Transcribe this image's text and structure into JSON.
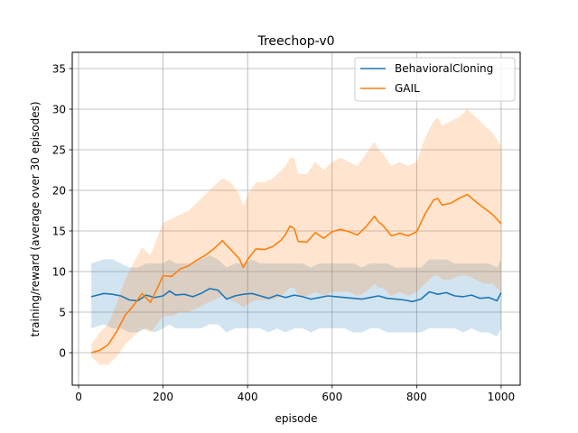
{
  "chart_data": {
    "type": "line",
    "title": "Treechop-v0",
    "xlabel": "episode",
    "ylabel": "training/reward (average over 30 episodes)",
    "xlim": [
      -15,
      1045
    ],
    "ylim": [
      -4,
      37
    ],
    "xticks": [
      0,
      200,
      400,
      600,
      800,
      1000
    ],
    "yticks": [
      0,
      5,
      10,
      15,
      20,
      25,
      30,
      35
    ],
    "xtick_labels": [
      "0",
      "200",
      "400",
      "600",
      "800",
      "1000"
    ],
    "ytick_labels": [
      "0",
      "5",
      "10",
      "15",
      "20",
      "25",
      "30",
      "35"
    ],
    "grid": true,
    "legend_position": "upper right",
    "series": [
      {
        "name": "BehavioralCloning",
        "color": "#1f77b4",
        "x": [
          30,
          60,
          80,
          100,
          120,
          140,
          160,
          180,
          200,
          215,
          230,
          250,
          270,
          290,
          310,
          330,
          350,
          370,
          390,
          410,
          430,
          450,
          470,
          490,
          510,
          530,
          550,
          570,
          590,
          610,
          630,
          650,
          670,
          690,
          710,
          730,
          750,
          770,
          790,
          810,
          830,
          850,
          870,
          890,
          910,
          930,
          950,
          970,
          990,
          1000
        ],
        "y": [
          6.9,
          7.3,
          7.2,
          7.0,
          6.5,
          6.4,
          7.1,
          6.8,
          7.0,
          7.6,
          7.1,
          7.2,
          6.9,
          7.3,
          7.9,
          7.7,
          6.6,
          7.0,
          7.2,
          7.3,
          7.0,
          6.7,
          7.1,
          6.8,
          7.1,
          6.9,
          6.6,
          6.8,
          7.0,
          6.9,
          6.8,
          6.7,
          6.6,
          6.8,
          7.0,
          6.7,
          6.6,
          6.5,
          6.3,
          6.6,
          7.5,
          7.2,
          7.4,
          7.0,
          6.9,
          7.1,
          6.7,
          6.8,
          6.4,
          7.4
        ],
        "band_low": [
          3.0,
          3.5,
          3.0,
          3.0,
          2.5,
          2.5,
          3.0,
          2.5,
          3.0,
          3.5,
          3.0,
          3.0,
          3.0,
          3.0,
          3.5,
          3.5,
          2.5,
          3.0,
          3.0,
          3.0,
          3.0,
          2.5,
          3.0,
          2.5,
          3.0,
          3.0,
          2.5,
          3.0,
          3.0,
          3.0,
          3.0,
          2.5,
          2.5,
          3.0,
          3.0,
          2.5,
          2.5,
          2.5,
          2.5,
          2.5,
          3.0,
          3.0,
          3.0,
          3.0,
          2.5,
          3.0,
          2.5,
          2.5,
          2.0,
          3.0
        ],
        "band_high": [
          11.0,
          11.5,
          11.5,
          11.0,
          10.5,
          10.5,
          11.0,
          11.0,
          11.0,
          11.5,
          11.0,
          11.0,
          11.0,
          11.5,
          12.0,
          11.5,
          10.5,
          11.0,
          11.0,
          11.5,
          11.0,
          11.0,
          11.0,
          11.0,
          11.0,
          11.0,
          10.5,
          11.0,
          11.0,
          11.0,
          11.0,
          11.0,
          10.5,
          11.0,
          11.0,
          11.0,
          10.5,
          10.5,
          10.5,
          10.5,
          11.5,
          11.5,
          11.5,
          11.0,
          11.0,
          11.0,
          11.0,
          11.0,
          10.5,
          11.5
        ]
      },
      {
        "name": "GAIL",
        "color": "#ff7f0e",
        "x": [
          30,
          50,
          70,
          90,
          110,
          130,
          150,
          170,
          185,
          200,
          220,
          240,
          260,
          280,
          300,
          320,
          340,
          360,
          380,
          390,
          400,
          420,
          440,
          460,
          480,
          490,
          500,
          510,
          520,
          540,
          560,
          580,
          600,
          620,
          640,
          660,
          680,
          700,
          710,
          720,
          740,
          760,
          780,
          800,
          820,
          840,
          850,
          860,
          880,
          900,
          920,
          940,
          960,
          980,
          1000
        ],
        "y": [
          0.0,
          0.3,
          1.0,
          2.6,
          4.6,
          5.8,
          7.3,
          6.2,
          7.8,
          9.5,
          9.4,
          10.3,
          10.7,
          11.4,
          12.0,
          12.8,
          13.8,
          12.7,
          11.6,
          10.5,
          11.5,
          12.8,
          12.7,
          13.1,
          13.9,
          14.6,
          15.6,
          15.3,
          13.7,
          13.6,
          14.8,
          14.1,
          14.9,
          15.2,
          14.9,
          14.5,
          15.5,
          16.8,
          16.1,
          15.7,
          14.4,
          14.7,
          14.4,
          14.9,
          17.1,
          18.8,
          19.0,
          18.2,
          18.4,
          19.0,
          19.5,
          18.6,
          17.8,
          17.0,
          15.9
        ],
        "band_low": [
          -0.5,
          -1.5,
          -1.5,
          -0.5,
          1.0,
          2.0,
          3.0,
          2.5,
          3.5,
          4.5,
          4.5,
          5.0,
          5.0,
          5.5,
          6.0,
          6.5,
          7.0,
          6.5,
          6.0,
          5.5,
          6.0,
          6.5,
          6.5,
          6.5,
          7.0,
          7.5,
          8.0,
          8.0,
          7.0,
          7.0,
          7.5,
          7.0,
          7.5,
          7.5,
          7.5,
          7.0,
          7.5,
          8.5,
          8.0,
          8.0,
          7.0,
          7.5,
          7.0,
          7.5,
          8.5,
          9.5,
          9.5,
          9.0,
          9.0,
          9.5,
          9.5,
          9.0,
          8.5,
          8.5,
          7.5
        ],
        "band_high": [
          1.0,
          2.5,
          3.5,
          6.0,
          9.0,
          11.0,
          13.0,
          12.0,
          14.0,
          16.0,
          16.5,
          17.0,
          17.5,
          18.5,
          19.5,
          20.5,
          21.5,
          21.0,
          19.5,
          18.0,
          19.5,
          21.0,
          21.0,
          21.5,
          22.5,
          23.0,
          24.0,
          24.0,
          22.0,
          22.0,
          23.5,
          22.5,
          23.5,
          24.0,
          23.5,
          23.0,
          24.5,
          26.0,
          25.0,
          24.5,
          23.0,
          23.5,
          23.0,
          23.5,
          26.5,
          28.5,
          29.0,
          28.0,
          28.5,
          29.0,
          30.0,
          29.0,
          28.0,
          27.0,
          25.5
        ]
      }
    ]
  }
}
